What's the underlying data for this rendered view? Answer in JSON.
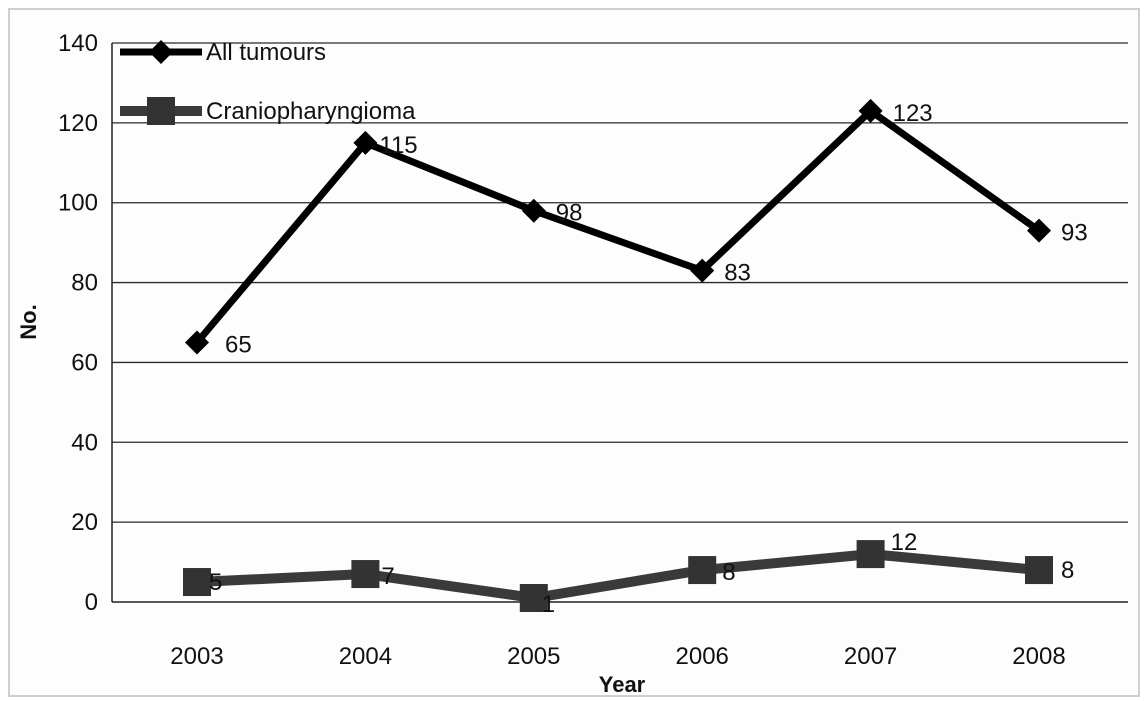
{
  "chart_data": {
    "type": "line",
    "categories": [
      "2003",
      "2004",
      "2005",
      "2006",
      "2007",
      "2008"
    ],
    "xlabel": "Year",
    "ylabel": "No.",
    "ylim": [
      0,
      140
    ],
    "yticks": [
      0,
      20,
      40,
      60,
      80,
      100,
      120,
      140
    ],
    "grid": true,
    "legend_position": "top-left",
    "series": [
      {
        "name": "All tumours",
        "values": [
          65,
          115,
          98,
          83,
          123,
          93
        ],
        "marker": "diamond",
        "color": "#000000"
      },
      {
        "name": "Craniopharyngioma",
        "values": [
          5,
          7,
          1,
          8,
          12,
          8
        ],
        "marker": "square",
        "color": "#333333"
      }
    ]
  }
}
